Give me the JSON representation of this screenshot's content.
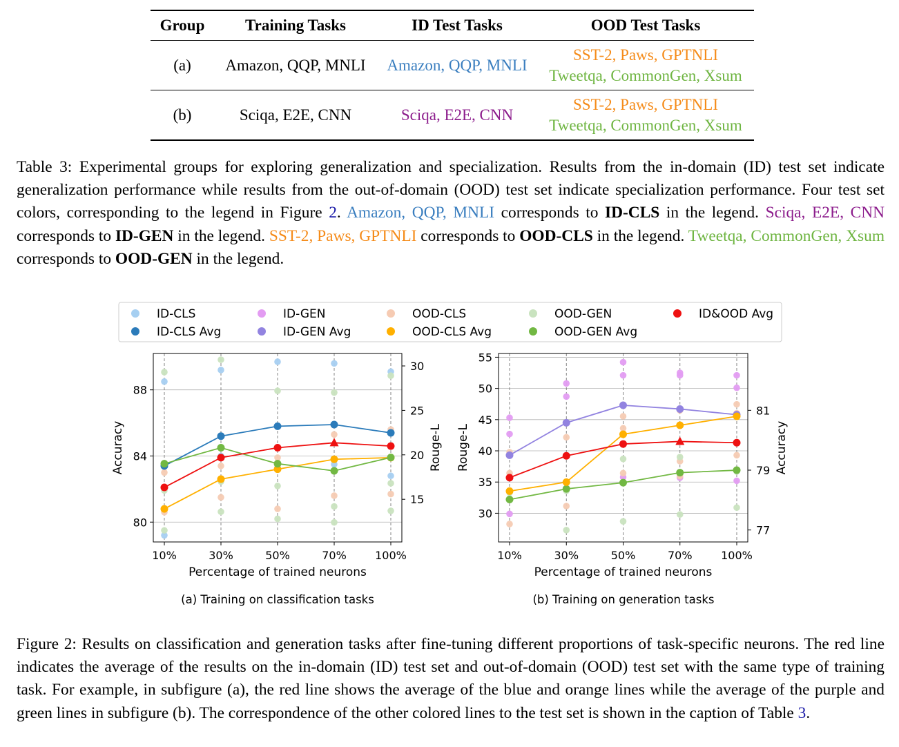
{
  "table": {
    "headers": [
      "Group",
      "Training Tasks",
      "ID Test Tasks",
      "OOD Test Tasks"
    ],
    "rows": [
      {
        "group": "(a)",
        "training": "Amazon, QQP, MNLI",
        "id_test": "Amazon, QQP, MNLI",
        "ood_line1": "SST-2, Paws, GPTNLI",
        "ood_line2": "Tweetqa, CommonGen, Xsum"
      },
      {
        "group": "(b)",
        "training": "Sciqa, E2E, CNN",
        "id_test": "Sciqa, E2E, CNN",
        "ood_line1": "SST-2, Paws, GPTNLI",
        "ood_line2": "Tweetqa, CommonGen, Xsum"
      }
    ]
  },
  "table_caption": {
    "t1": "Table 3: Experimental groups for exploring generalization and specialization. Results from the in-domain (ID) test set indicate generalization performance while results from the out-of-domain (OOD) test set indicate specialization performance. Four test set colors, corresponding to the legend in Figure ",
    "fig_ref": "2",
    "t2": ". ",
    "id_cls_sets": "Amazon, QQP, MNLI",
    "t3": " corresponds to ",
    "id_cls": "ID-CLS",
    "t4": " in the legend. ",
    "id_gen_sets": "Sciqa, E2E, CNN",
    "t5": " corresponds to ",
    "id_gen": "ID-GEN",
    "t6": " in the legend. ",
    "ood_cls_sets": "SST-2, Paws, GPTNLI",
    "t7": " corresponds to ",
    "ood_cls": "OOD-CLS",
    "t8": " in the legend. ",
    "ood_gen_sets": "Tweetqa, CommonGen, Xsum",
    "t9": " corresponds to ",
    "ood_gen": "OOD-GEN",
    "t10": " in the legend."
  },
  "figure_caption": {
    "t1": "Figure 2: Results on classification and generation tasks after fine-tuning different proportions of task-specific neurons. The red line indicates the average of the results on the in-domain (ID) test set and out-of-domain (OOD) test set with the same type of training task. For example, in subfigure (a), the red line shows the average of the blue and orange lines while the average of the purple and green lines in subfigure (b). The correspondence of the other colored lines to the test set is shown in the caption of Table ",
    "table_ref": "3",
    "t2": "."
  },
  "legend": [
    {
      "label": "ID-CLS",
      "color": "#a6cff1"
    },
    {
      "label": "ID-CLS Avg",
      "color": "#2b7bba"
    },
    {
      "label": "ID-GEN",
      "color": "#e39cf2"
    },
    {
      "label": "ID-GEN Avg",
      "color": "#9283e0"
    },
    {
      "label": "OOD-CLS",
      "color": "#f6cbb3"
    },
    {
      "label": "OOD-CLS Avg",
      "color": "#ffb000"
    },
    {
      "label": "OOD-GEN",
      "color": "#c9e3bf"
    },
    {
      "label": "OOD-GEN Avg",
      "color": "#72b843"
    },
    {
      "label": "ID&OOD Avg",
      "color": "#ee1111"
    }
  ],
  "chart_data": [
    {
      "type": "line",
      "subtitle": "(a) Training on classification tasks",
      "xlabel": "Percentage of trained neurons",
      "ylabel_left": "Accuracy",
      "ylabel_right": "Rouge-L",
      "categories": [
        "10%",
        "30%",
        "50%",
        "70%",
        "100%"
      ],
      "ylim_left": [
        78.8,
        90.2
      ],
      "yticks_left": [
        80,
        84,
        88
      ],
      "ylim_right": [
        10.2,
        31.4
      ],
      "yticks_right": [
        15,
        20,
        25,
        30
      ],
      "series": [
        {
          "name": "ID-CLS Avg",
          "axis": "left",
          "color": "#2b7bba",
          "values": [
            83.4,
            85.2,
            85.8,
            85.9,
            85.4
          ]
        },
        {
          "name": "OOD-CLS Avg",
          "axis": "left",
          "color": "#ffb000",
          "values": [
            80.8,
            82.6,
            83.2,
            83.8,
            83.9
          ]
        },
        {
          "name": "OOD-GEN Avg",
          "axis": "right",
          "color": "#72b843",
          "values": [
            19.0,
            20.8,
            19.0,
            18.2,
            19.7
          ]
        },
        {
          "name": "ID&OOD Avg",
          "axis": "left",
          "color": "#ee1111",
          "values": [
            82.1,
            83.9,
            84.5,
            84.8,
            84.6
          ],
          "max_index": 3
        }
      ],
      "scatter": [
        {
          "name": "ID-CLS",
          "axis": "left",
          "color": "#a6cff1",
          "points": [
            [
              0,
              88.5
            ],
            [
              0,
              79.2
            ],
            [
              1,
              89.2
            ],
            [
              1,
              84.0
            ],
            [
              2,
              89.7
            ],
            [
              2,
              83.3
            ],
            [
              3,
              89.6
            ],
            [
              3,
              83.5
            ],
            [
              4,
              89.1
            ],
            [
              4,
              82.8
            ]
          ]
        },
        {
          "name": "OOD-CLS",
          "axis": "left",
          "color": "#f6cbb3",
          "points": [
            [
              0,
              80.6
            ],
            [
              0,
              83.0
            ],
            [
              1,
              81.5
            ],
            [
              1,
              83.4
            ],
            [
              2,
              80.8
            ],
            [
              2,
              83.9
            ],
            [
              3,
              81.6
            ],
            [
              3,
              85.3
            ],
            [
              4,
              81.7
            ],
            [
              4,
              85.6
            ]
          ]
        },
        {
          "name": "OOD-GEN",
          "axis": "right",
          "color": "#c9e3bf",
          "points": [
            [
              0,
              29.3
            ],
            [
              0,
              11.5
            ],
            [
              0,
              16.0
            ],
            [
              1,
              30.7
            ],
            [
              1,
              13.6
            ],
            [
              1,
              17.0
            ],
            [
              2,
              27.2
            ],
            [
              2,
              12.8
            ],
            [
              2,
              16.5
            ],
            [
              3,
              27.0
            ],
            [
              3,
              12.4
            ],
            [
              3,
              14.2
            ],
            [
              4,
              28.9
            ],
            [
              4,
              13.7
            ],
            [
              4,
              16.8
            ]
          ]
        }
      ]
    },
    {
      "type": "line",
      "subtitle": "(b) Training on generation tasks",
      "xlabel": "Percentage of trained neurons",
      "ylabel_left": "Rouge-L",
      "ylabel_right": "Accuracy",
      "categories": [
        "10%",
        "30%",
        "50%",
        "70%",
        "100%"
      ],
      "ylim_left": [
        25.4,
        55.6
      ],
      "yticks_left": [
        30,
        35,
        40,
        45,
        50,
        55
      ],
      "ylim_right": [
        76.6,
        82.9
      ],
      "yticks_right": [
        77,
        79,
        81
      ],
      "series": [
        {
          "name": "ID-GEN Avg",
          "axis": "left",
          "color": "#9283e0",
          "values": [
            39.3,
            44.5,
            47.3,
            46.7,
            45.8
          ]
        },
        {
          "name": "OOD-GEN Avg",
          "axis": "left",
          "color": "#72b843",
          "values": [
            32.2,
            33.9,
            34.9,
            36.5,
            36.9
          ]
        },
        {
          "name": "OOD-CLS Avg",
          "axis": "right",
          "color": "#ffb000",
          "values": [
            78.3,
            78.6,
            80.2,
            80.5,
            80.8
          ]
        },
        {
          "name": "ID&OOD Avg",
          "axis": "left",
          "color": "#ee1111",
          "values": [
            35.7,
            39.2,
            41.1,
            41.5,
            41.3
          ],
          "max_index": 3
        }
      ],
      "scatter": [
        {
          "name": "ID-GEN",
          "axis": "left",
          "color": "#e39cf2",
          "points": [
            [
              0,
              45.3
            ],
            [
              0,
              42.7
            ],
            [
              0,
              29.9
            ],
            [
              1,
              50.8
            ],
            [
              1,
              48.7
            ],
            [
              2,
              54.2
            ],
            [
              2,
              52.1
            ],
            [
              2,
              35.8
            ],
            [
              3,
              52.5
            ],
            [
              3,
              52.1
            ],
            [
              3,
              35.7
            ],
            [
              4,
              52.1
            ],
            [
              4,
              50.1
            ],
            [
              4,
              35.2
            ]
          ]
        },
        {
          "name": "OOD-CLS",
          "axis": "right",
          "color": "#f6cbb3",
          "points": [
            [
              0,
              77.2
            ],
            [
              0,
              79.6
            ],
            [
              0,
              78.9
            ],
            [
              1,
              77.8
            ],
            [
              1,
              80.1
            ],
            [
              1,
              78.6
            ],
            [
              2,
              80.8
            ],
            [
              2,
              80.4
            ],
            [
              2,
              78.9
            ],
            [
              3,
              81.0
            ],
            [
              3,
              79.3
            ],
            [
              3,
              78.8
            ],
            [
              4,
              81.2
            ],
            [
              4,
              79.5
            ],
            [
              4,
              80.9
            ]
          ]
        },
        {
          "name": "OOD-GEN",
          "axis": "left",
          "color": "#c9e3bf",
          "points": [
            [
              0,
              33.3
            ],
            [
              1,
              27.3
            ],
            [
              1,
              33.6
            ],
            [
              2,
              28.7
            ],
            [
              2,
              38.7
            ],
            [
              3,
              29.8
            ],
            [
              3,
              39.0
            ],
            [
              4,
              30.9
            ],
            [
              4,
              36.7
            ]
          ]
        }
      ]
    }
  ]
}
